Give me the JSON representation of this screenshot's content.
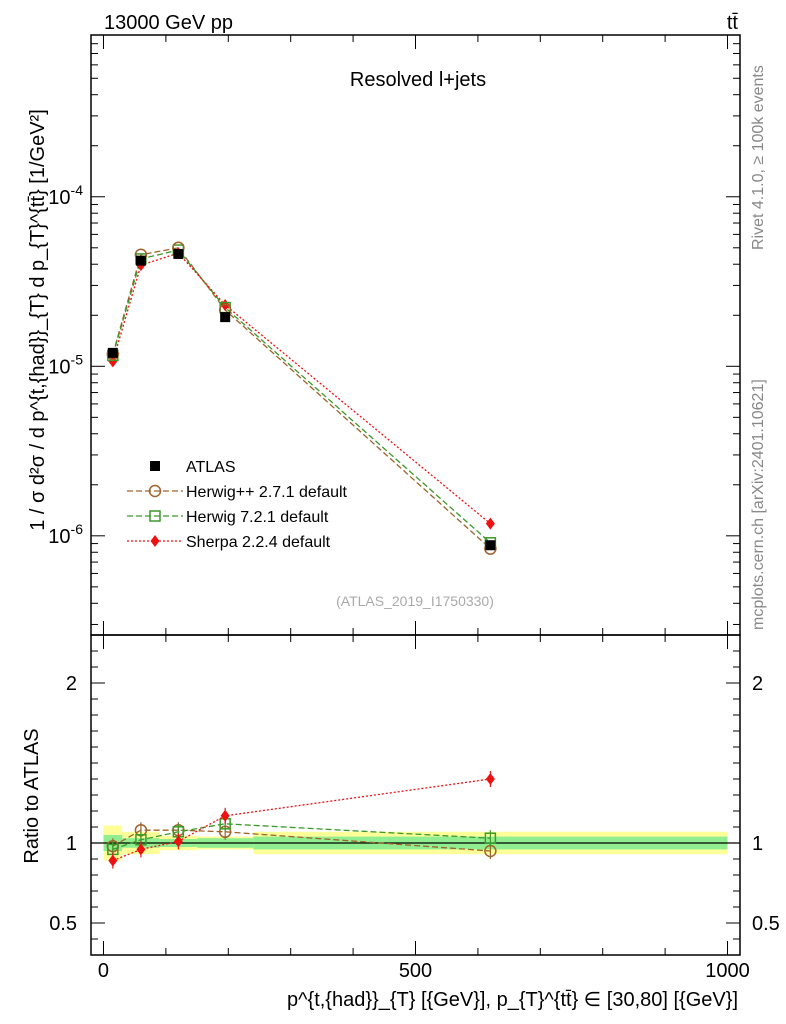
{
  "header": {
    "left": "13000 GeV pp",
    "right": "tt̄",
    "plot_title": "Resolved l+jets",
    "watermark": "(ATLAS_2019_I1750330)",
    "side_rivet": "Rivet 4.1.0, ≥ 100k events",
    "side_mcplots": "mcplots.cern.ch [arXiv:2401.10621]"
  },
  "colors": {
    "ATLAS": "#000000",
    "Herwig++ 2.7.1 default": "#a0632a",
    "Herwig 7.2.1 default": "#3a9a2a",
    "Sherpa 2.2.4 default": "#ee1111",
    "band_inner": "#90ee90",
    "band_outer": "#ffff99"
  },
  "chart_data": [
    {
      "type": "line",
      "panel": "main",
      "yscale": "log",
      "ylabel": "1 / σ d²σ / d p^{t,{had}}_{T} d p_{T}^{tt̄} [1/GeV²]",
      "xlim": [
        -20,
        1020
      ],
      "ylim": [
        2.6e-07,
        0.0009
      ],
      "ytick_labels": [
        "10^-6",
        "10^-5",
        "10^-4"
      ],
      "ytick_values": [
        1e-06,
        1e-05,
        0.0001
      ],
      "x": [
        15,
        60,
        120,
        195,
        620
      ],
      "series": [
        {
          "name": "ATLAS",
          "marker": "square",
          "values": [
            1.2e-05,
            4.2e-05,
            4.6e-05,
            1.95e-05,
            8.8e-07
          ]
        },
        {
          "name": "Herwig++ 2.7.1 default",
          "marker": "circle-open",
          "linestyle": "dashed",
          "values": [
            1.18e-05,
            4.55e-05,
            5e-05,
            2.15e-05,
            8.4e-07
          ]
        },
        {
          "name": "Herwig 7.2.1 default",
          "marker": "square-open",
          "linestyle": "dashed",
          "values": [
            1.16e-05,
            4.3e-05,
            4.85e-05,
            2.22e-05,
            9.1e-07
          ]
        },
        {
          "name": "Sherpa 2.2.4 default",
          "marker": "diamond",
          "linestyle": "dotted",
          "values": [
            1.07e-05,
            3.95e-05,
            4.65e-05,
            2.3e-05,
            1.18e-06
          ]
        }
      ],
      "legend": [
        "ATLAS",
        "Herwig++ 2.7.1 default",
        "Herwig 7.2.1 default",
        "Sherpa 2.2.4 default"
      ]
    },
    {
      "type": "line",
      "panel": "ratio",
      "ylabel": "Ratio to ATLAS",
      "xlabel": "p^{t,{had}}_{T} [{GeV}], p_{T}^{tt̄} ∈ [30,80] [{GeV}]",
      "xlim": [
        -20,
        1020
      ],
      "ylim": [
        0.3,
        2.3
      ],
      "ytick_labels": [
        "0.5",
        "1",
        "2"
      ],
      "ytick_values": [
        0.5,
        1,
        2
      ],
      "xtick_labels": [
        "0",
        "500",
        "1000"
      ],
      "xtick_values": [
        0,
        500,
        1000
      ],
      "x": [
        15,
        60,
        120,
        195,
        620
      ],
      "bands": [
        {
          "xlo": 0,
          "xhi": 30,
          "inner": [
            0.95,
            1.05
          ],
          "outer": [
            0.89,
            1.11
          ]
        },
        {
          "xlo": 30,
          "xhi": 90,
          "inner": [
            0.97,
            1.03
          ],
          "outer": [
            0.93,
            1.07
          ]
        },
        {
          "xlo": 90,
          "xhi": 150,
          "inner": [
            0.975,
            1.025
          ],
          "outer": [
            0.955,
            1.045
          ]
        },
        {
          "xlo": 150,
          "xhi": 240,
          "inner": [
            0.97,
            1.03
          ],
          "outer": [
            0.96,
            1.04
          ]
        },
        {
          "xlo": 240,
          "xhi": 1000,
          "inner": [
            0.96,
            1.04
          ],
          "outer": [
            0.93,
            1.07
          ]
        }
      ],
      "series": [
        {
          "name": "Herwig++ 2.7.1 default",
          "values": [
            0.98,
            1.08,
            1.08,
            1.07,
            0.95
          ]
        },
        {
          "name": "Herwig 7.2.1 default",
          "values": [
            0.96,
            1.02,
            1.07,
            1.12,
            1.03
          ]
        },
        {
          "name": "Sherpa 2.2.4 default",
          "values": [
            0.89,
            0.96,
            1.01,
            1.17,
            1.4
          ]
        }
      ]
    }
  ]
}
